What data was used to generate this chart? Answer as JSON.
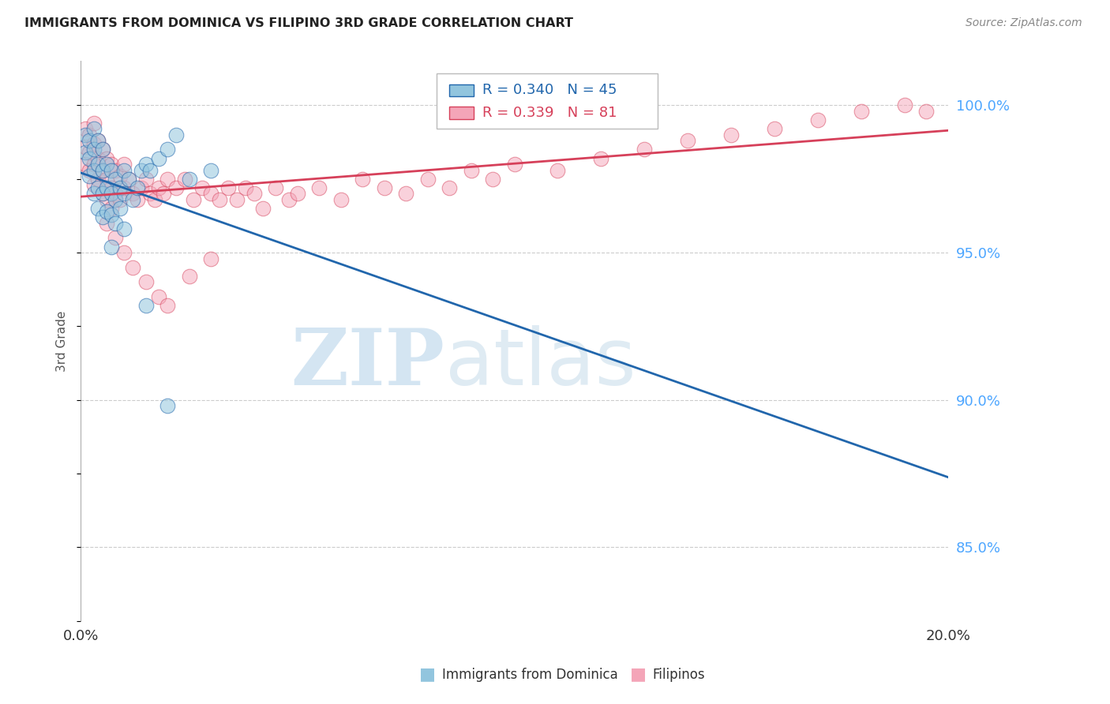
{
  "title": "IMMIGRANTS FROM DOMINICA VS FILIPINO 3RD GRADE CORRELATION CHART",
  "source": "Source: ZipAtlas.com",
  "ylabel": "3rd Grade",
  "ytick_values": [
    0.85,
    0.9,
    0.95,
    1.0
  ],
  "xlim": [
    0.0,
    0.2
  ],
  "ylim": [
    0.825,
    1.015
  ],
  "legend1_label": "Immigrants from Dominica",
  "legend2_label": "Filipinos",
  "R1": 0.34,
  "N1": 45,
  "R2": 0.339,
  "N2": 81,
  "color_blue": "#92c5de",
  "color_pink": "#f4a5b8",
  "line_blue": "#2166ac",
  "line_pink": "#d6405a",
  "blue_x": [
    0.001,
    0.001,
    0.002,
    0.002,
    0.002,
    0.003,
    0.003,
    0.003,
    0.003,
    0.004,
    0.004,
    0.004,
    0.004,
    0.005,
    0.005,
    0.005,
    0.005,
    0.006,
    0.006,
    0.006,
    0.007,
    0.007,
    0.007,
    0.008,
    0.008,
    0.008,
    0.009,
    0.009,
    0.01,
    0.01,
    0.011,
    0.012,
    0.013,
    0.014,
    0.015,
    0.016,
    0.018,
    0.02,
    0.022,
    0.025,
    0.03,
    0.01,
    0.007,
    0.015,
    0.02
  ],
  "blue_y": [
    0.99,
    0.984,
    0.988,
    0.982,
    0.976,
    0.992,
    0.985,
    0.978,
    0.97,
    0.988,
    0.98,
    0.972,
    0.965,
    0.985,
    0.978,
    0.97,
    0.962,
    0.98,
    0.972,
    0.964,
    0.978,
    0.97,
    0.963,
    0.975,
    0.968,
    0.96,
    0.972,
    0.965,
    0.978,
    0.97,
    0.975,
    0.968,
    0.972,
    0.978,
    0.98,
    0.978,
    0.982,
    0.985,
    0.99,
    0.975,
    0.978,
    0.958,
    0.952,
    0.932,
    0.898
  ],
  "pink_x": [
    0.001,
    0.001,
    0.001,
    0.002,
    0.002,
    0.002,
    0.003,
    0.003,
    0.003,
    0.003,
    0.004,
    0.004,
    0.004,
    0.005,
    0.005,
    0.005,
    0.006,
    0.006,
    0.006,
    0.007,
    0.007,
    0.007,
    0.008,
    0.008,
    0.009,
    0.009,
    0.01,
    0.01,
    0.011,
    0.012,
    0.013,
    0.014,
    0.015,
    0.016,
    0.017,
    0.018,
    0.019,
    0.02,
    0.022,
    0.024,
    0.026,
    0.028,
    0.03,
    0.032,
    0.034,
    0.036,
    0.038,
    0.04,
    0.042,
    0.045,
    0.048,
    0.05,
    0.055,
    0.06,
    0.065,
    0.07,
    0.075,
    0.08,
    0.085,
    0.09,
    0.095,
    0.1,
    0.11,
    0.12,
    0.13,
    0.14,
    0.15,
    0.16,
    0.17,
    0.18,
    0.19,
    0.195,
    0.006,
    0.008,
    0.01,
    0.012,
    0.015,
    0.018,
    0.02,
    0.025,
    0.03
  ],
  "pink_y": [
    0.992,
    0.986,
    0.98,
    0.99,
    0.984,
    0.978,
    0.994,
    0.987,
    0.98,
    0.973,
    0.988,
    0.982,
    0.975,
    0.985,
    0.978,
    0.97,
    0.982,
    0.975,
    0.968,
    0.98,
    0.972,
    0.965,
    0.978,
    0.97,
    0.976,
    0.968,
    0.98,
    0.972,
    0.975,
    0.97,
    0.968,
    0.972,
    0.975,
    0.97,
    0.968,
    0.972,
    0.97,
    0.975,
    0.972,
    0.975,
    0.968,
    0.972,
    0.97,
    0.968,
    0.972,
    0.968,
    0.972,
    0.97,
    0.965,
    0.972,
    0.968,
    0.97,
    0.972,
    0.968,
    0.975,
    0.972,
    0.97,
    0.975,
    0.972,
    0.978,
    0.975,
    0.98,
    0.978,
    0.982,
    0.985,
    0.988,
    0.99,
    0.992,
    0.995,
    0.998,
    1.0,
    0.998,
    0.96,
    0.955,
    0.95,
    0.945,
    0.94,
    0.935,
    0.932,
    0.942,
    0.948
  ]
}
